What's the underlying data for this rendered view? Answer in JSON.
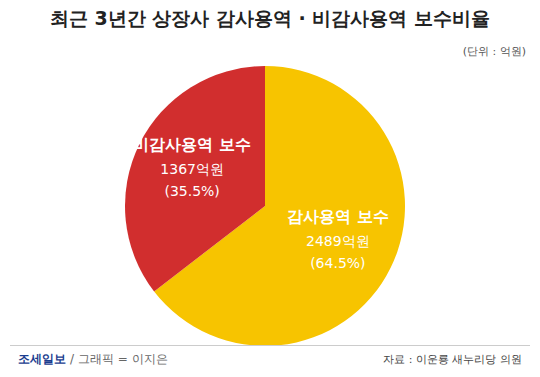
{
  "chart_data": {
    "type": "pie",
    "title": "최근 3년간 상장사 감사용역 · 비감사용역 보수비율",
    "unit": "(단위 : 억원)",
    "categories": [
      "감사용역 보수",
      "비감사용역 보수"
    ],
    "values": [
      2489,
      1367
    ],
    "value_labels": [
      "2489억원",
      "1367억원"
    ],
    "percent_labels": [
      "(64.5%)",
      "(35.5%)"
    ],
    "colors": [
      "#f7c400",
      "#d12e2e"
    ],
    "publisher": "조세일보",
    "credit": "/ 그래픽 = 이지은",
    "source": "자료 : 이운룡 새누리당 의원"
  }
}
